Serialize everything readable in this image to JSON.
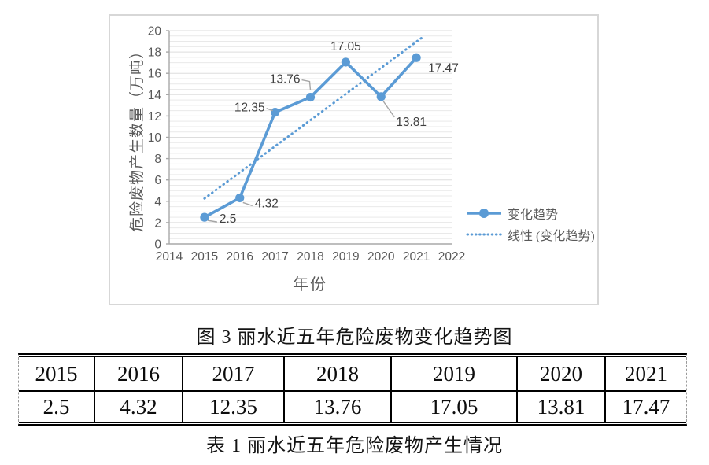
{
  "figure": {
    "caption": "图 3 丽水近五年危险废物变化趋势图"
  },
  "chart_data": {
    "type": "line",
    "x": [
      2015,
      2016,
      2017,
      2018,
      2019,
      2020,
      2021
    ],
    "series": [
      {
        "name": "变化趋势",
        "values": [
          2.5,
          4.32,
          12.35,
          13.76,
          17.05,
          13.81,
          17.47
        ],
        "style": "solid-line-with-markers"
      },
      {
        "name": "线性 (变化趋势)",
        "style": "dotted-linear-trendline",
        "x_start": 2015,
        "x_end": 2021.15
      }
    ],
    "data_labels": [
      "2.5",
      "4.32",
      "12.35",
      "13.76",
      "17.05",
      "13.81",
      "17.47"
    ],
    "xlabel": "年份",
    "ylabel": "危险废物产生数量（万吨）",
    "xticks": [
      2014,
      2015,
      2016,
      2017,
      2018,
      2019,
      2020,
      2021,
      2022
    ],
    "yticks": [
      0,
      2,
      4,
      6,
      8,
      10,
      12,
      14,
      16,
      18,
      20
    ],
    "xlim": [
      2014,
      2022
    ],
    "ylim": [
      0,
      20
    ],
    "grid": "horizontal, minor every 0.5, major every 2",
    "legend_position": "right-middle",
    "colors": {
      "series": "#5b9bd5",
      "trendline": "#5b9bd5",
      "tick_labels": "#595959",
      "data_labels": "#404040",
      "axis_line": "#a8a8a8",
      "leader_line": "#a6a6a6",
      "grid_minor": "#e9e9e9",
      "grid_major": "#dddddd"
    }
  },
  "table": {
    "caption": "表 1 丽水近五年危险废物产生情况",
    "headers": [
      "2015",
      "2016",
      "2017",
      "2018",
      "2019",
      "2020",
      "2021"
    ],
    "values": [
      "2.5",
      "4.32",
      "12.35",
      "13.76",
      "17.05",
      "13.81",
      "17.47"
    ]
  }
}
